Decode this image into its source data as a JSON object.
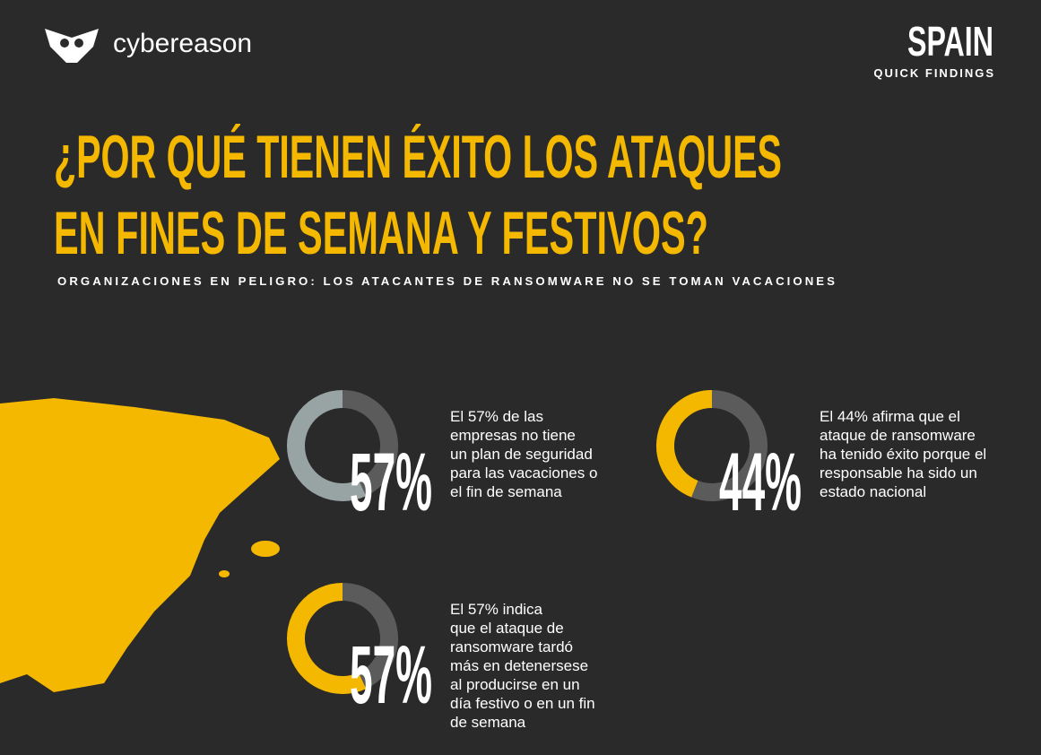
{
  "header": {
    "brand": "cybereason",
    "country": "SPAIN",
    "tag": "QUICK FINDINGS"
  },
  "title_lines": [
    "¿POR QUÉ TIENEN ÉXITO LOS ATAQUES",
    "EN FINES DE SEMANA Y FESTIVOS?"
  ],
  "subtitle": "ORGANIZACIONES EN PELIGRO: LOS ATACANTES DE RANSOMWARE NO SE TOMAN VACACIONES",
  "chart_data": [
    {
      "type": "donut",
      "values": [
        57,
        43
      ],
      "value_labels": [
        "57%",
        null
      ],
      "colors": [
        "#98a3a4",
        "#5b5b5b"
      ],
      "annotation_lines": [
        "El 57% de las",
        "empresas no tiene",
        "un plan de seguridad",
        "para las vacaciones o",
        "el fin de semana"
      ]
    },
    {
      "type": "donut",
      "values": [
        44,
        56
      ],
      "value_labels": [
        "44%",
        null
      ],
      "colors": [
        "#f4b800",
        "#5b5b5b"
      ],
      "annotation_lines": [
        "El 44% afirma que el",
        "ataque de ransomware",
        "ha tenido éxito porque el",
        "responsable ha sido un",
        "estado nacional"
      ]
    },
    {
      "type": "donut",
      "values": [
        57,
        43
      ],
      "value_labels": [
        "57%",
        null
      ],
      "colors": [
        "#f4b800",
        "#5b5b5b"
      ],
      "annotation_lines": [
        "El 57% indica",
        "que el ataque de",
        "ransomware tardó",
        "más en detenersese",
        "al producirse en un",
        "día festivo o en un fin",
        "de semana"
      ]
    }
  ]
}
